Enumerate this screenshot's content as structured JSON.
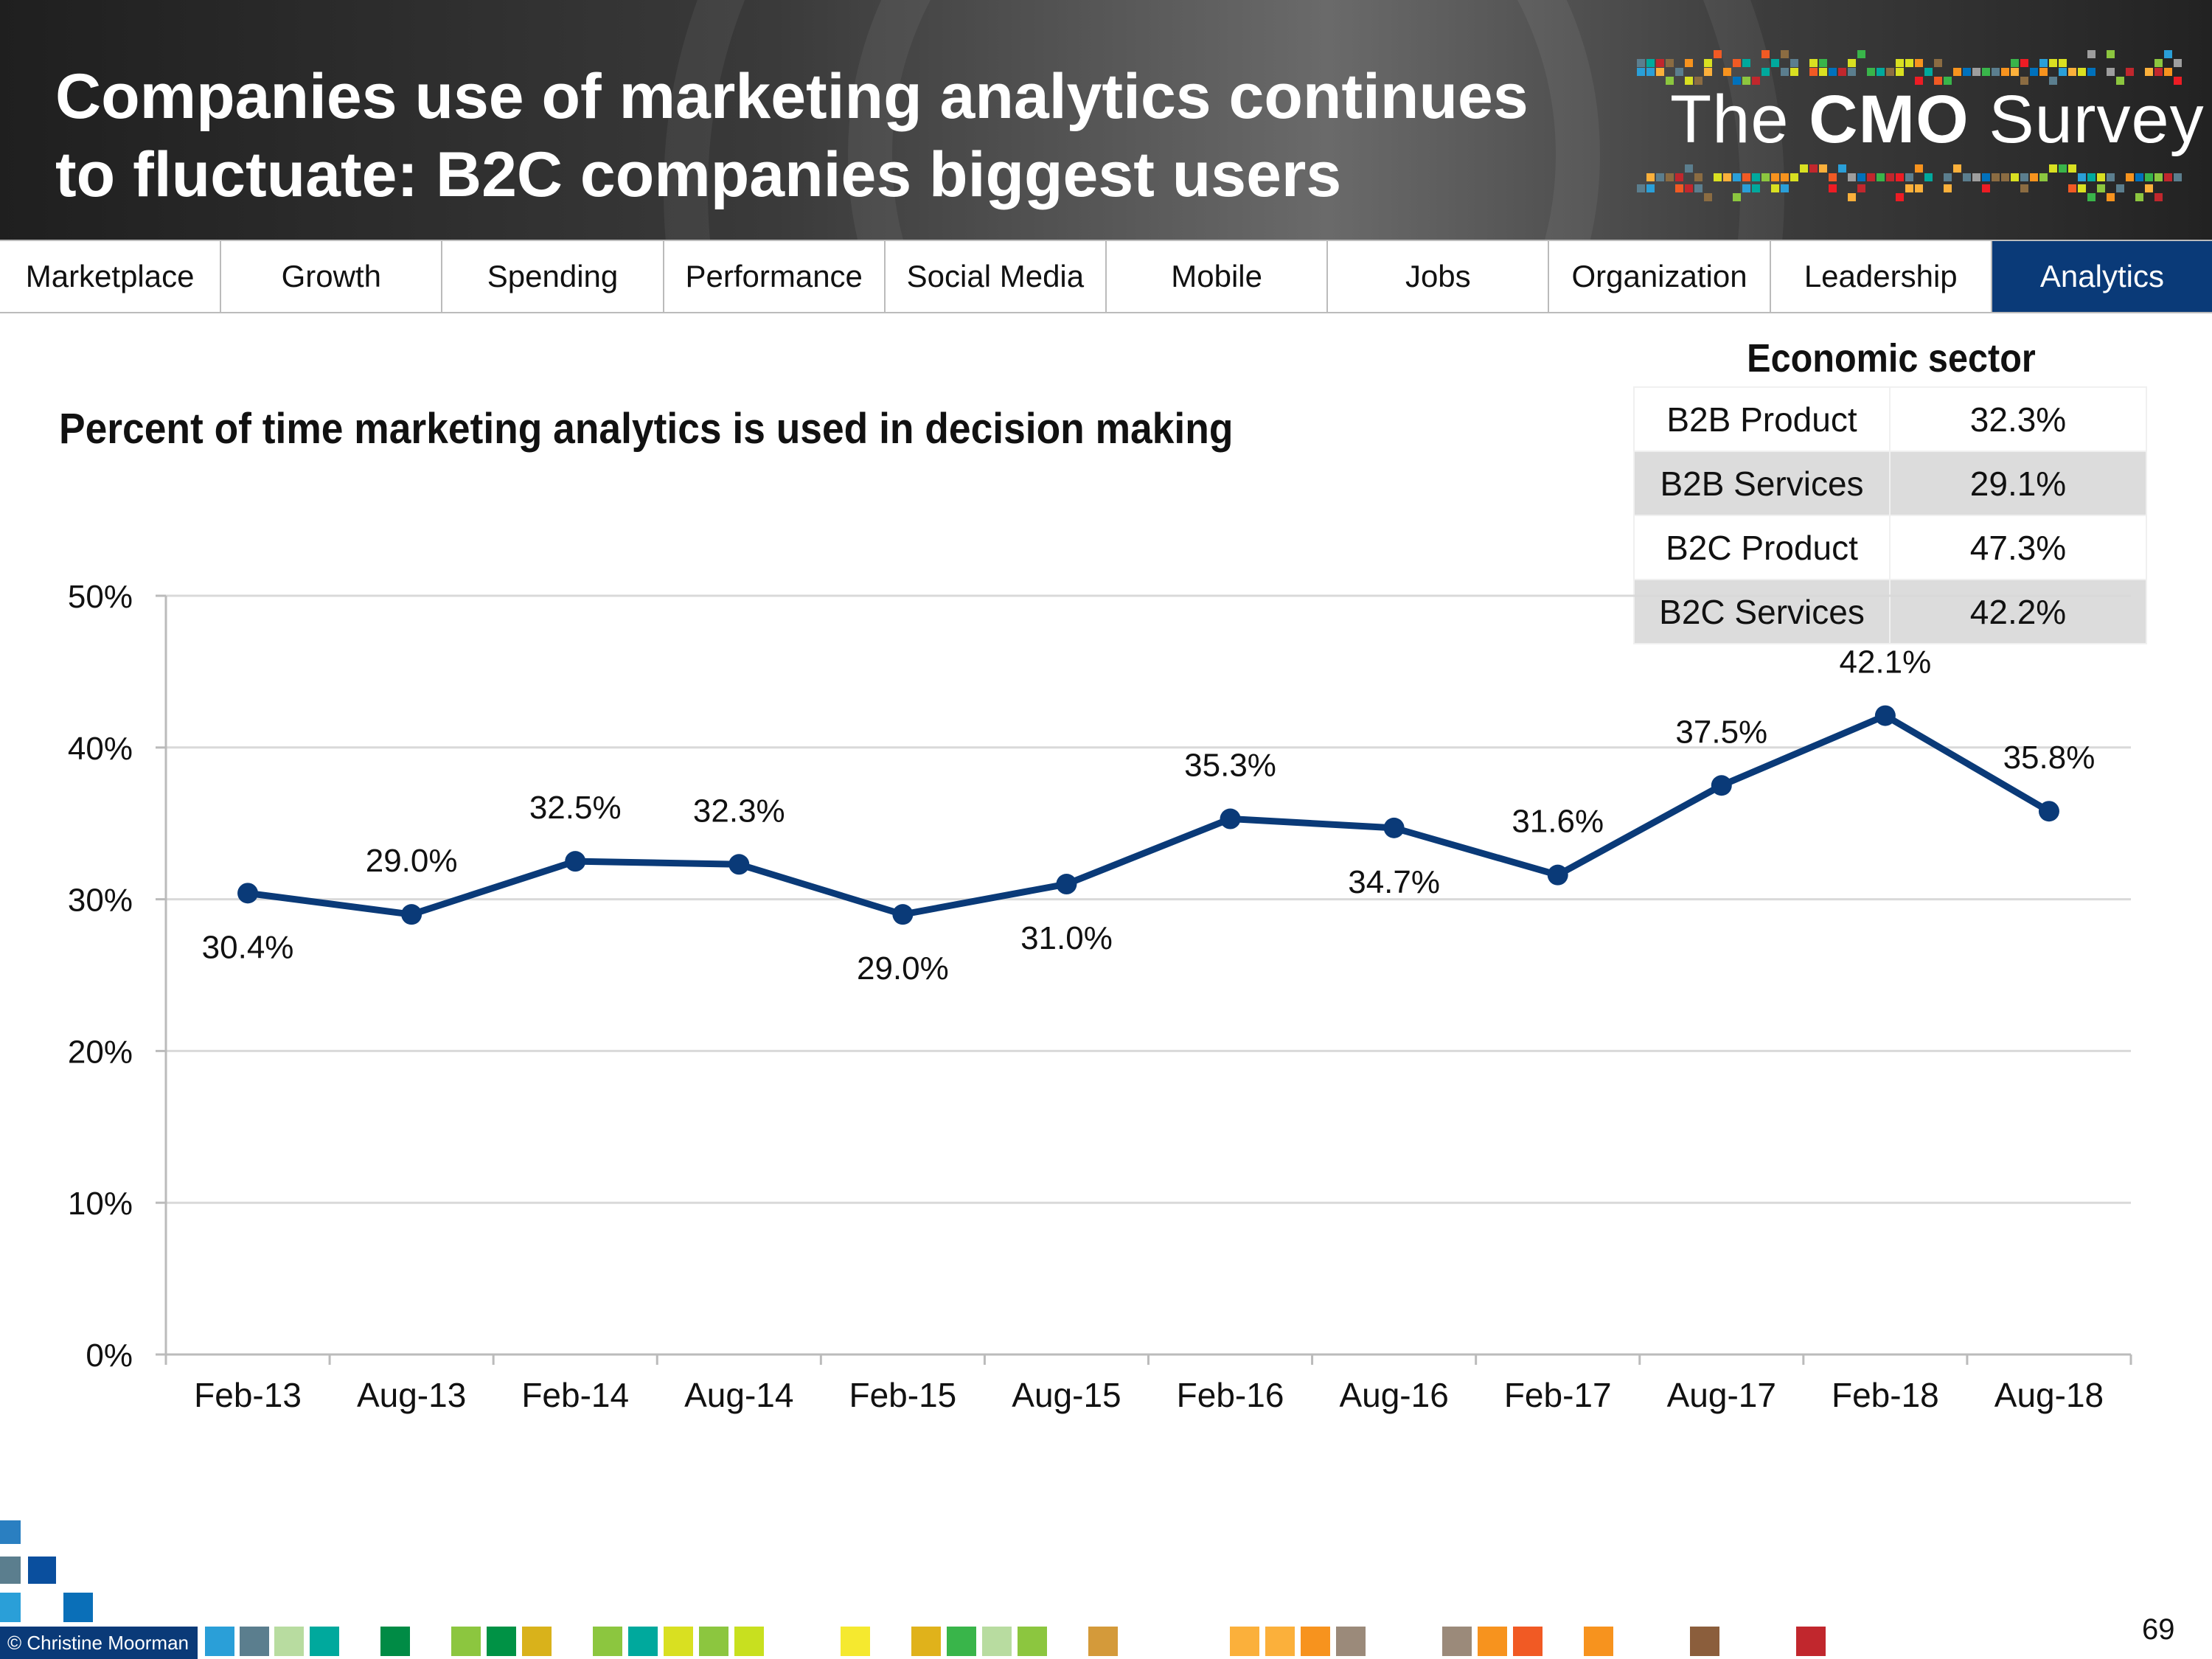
{
  "header": {
    "title_line1": "Companies use of marketing analytics continues",
    "title_line2": "to fluctuate: B2C companies biggest users",
    "logo_prefix": "The ",
    "logo_bold": "CMO",
    "logo_suffix": " Survey"
  },
  "nav": {
    "tabs": [
      "Marketplace",
      "Growth",
      "Spending",
      "Performance",
      "Social Media",
      "Mobile",
      "Jobs",
      "Organization",
      "Leadership",
      "Analytics"
    ],
    "active": "Analytics"
  },
  "sector": {
    "title": "Economic sector",
    "rows": [
      {
        "label": "B2B Product",
        "value": "32.3%"
      },
      {
        "label": "B2B Services",
        "value": "29.1%"
      },
      {
        "label": "B2C Product",
        "value": "47.3%"
      },
      {
        "label": "B2C Services",
        "value": "42.2%"
      }
    ]
  },
  "chart_data": {
    "type": "line",
    "title": "Percent of time marketing analytics is used in decision making",
    "categories": [
      "Feb-13",
      "Aug-13",
      "Feb-14",
      "Aug-14",
      "Feb-15",
      "Aug-15",
      "Feb-16",
      "Aug-16",
      "Feb-17",
      "Aug-17",
      "Feb-18",
      "Aug-18"
    ],
    "values": [
      30.4,
      29.0,
      32.5,
      32.3,
      29.0,
      31.0,
      35.3,
      34.7,
      31.6,
      37.5,
      42.1,
      35.8
    ],
    "data_labels": [
      "30.4%",
      "29.0%",
      "32.5%",
      "32.3%",
      "29.0%",
      "31.0%",
      "35.3%",
      "34.7%",
      "31.6%",
      "37.5%",
      "42.1%",
      "35.8%"
    ],
    "label_position": [
      "below",
      "above",
      "above",
      "above",
      "below",
      "below",
      "above",
      "below",
      "above",
      "above",
      "above",
      "above"
    ],
    "yticks": [
      "0%",
      "10%",
      "20%",
      "30%",
      "40%",
      "50%"
    ],
    "ylim": [
      0,
      50
    ],
    "grid": true,
    "legend": "none",
    "line_color": "#0a3a78"
  },
  "footer": {
    "copyright": "© Christine Moorman",
    "page_number": "69"
  }
}
